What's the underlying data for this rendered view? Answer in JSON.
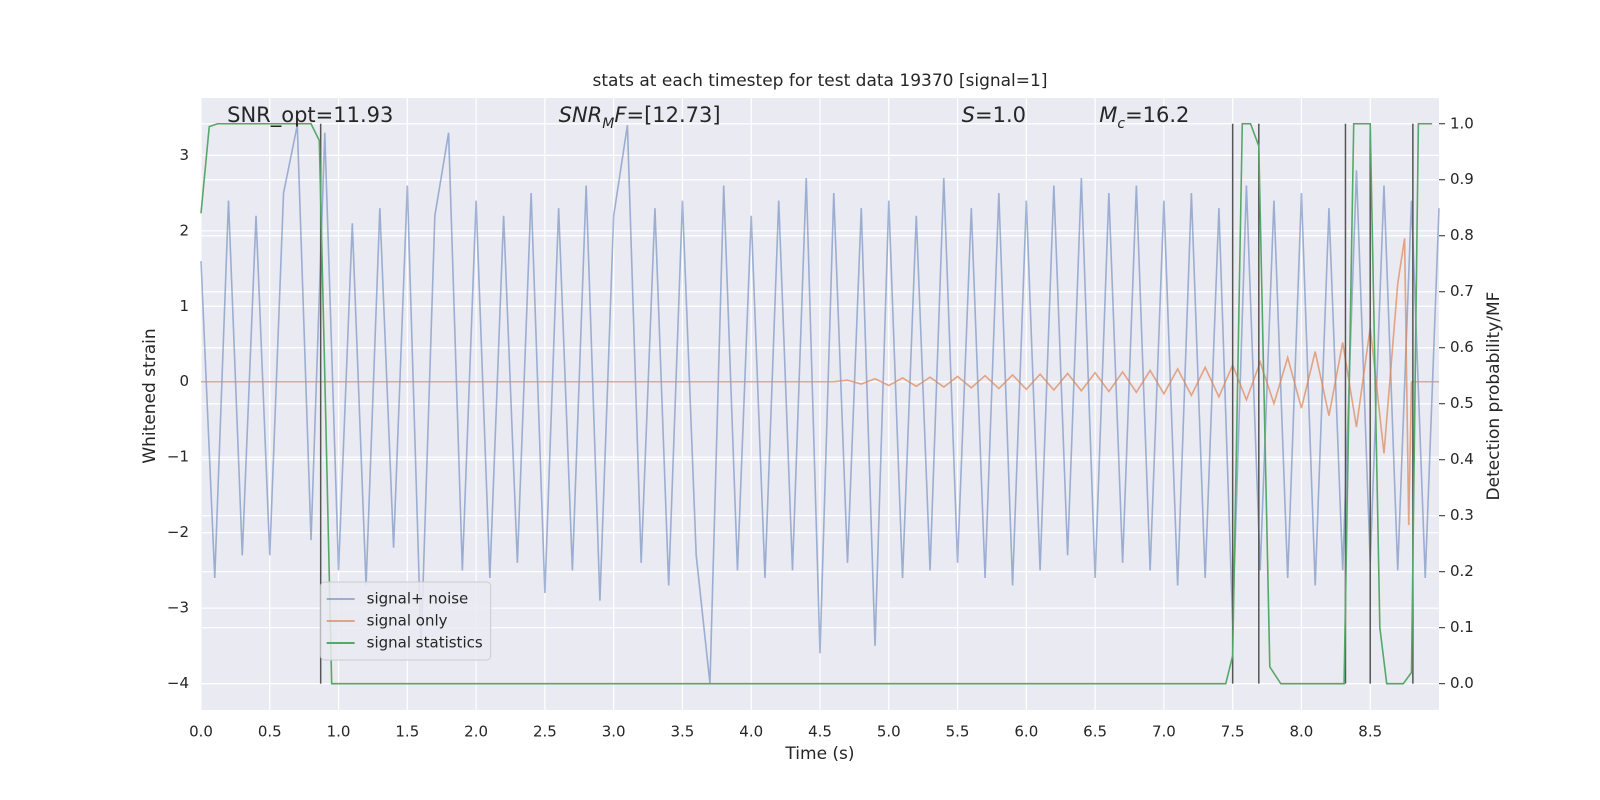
{
  "chart_data": {
    "type": "line",
    "title": "stats at each timestep for test data 19370 [signal=1]",
    "xlabel": "Time (s)",
    "ylabel": "Whitened strain",
    "y2label": "Detection probability/MF",
    "annotations": [
      [
        {
          "text": "SNR_opt=11.93"
        }
      ],
      [
        {
          "text": "SNR",
          "italic": true
        },
        {
          "text": "M",
          "italic": true,
          "sub": true
        },
        {
          "text": "F",
          "italic": true
        },
        {
          "text": "=[12.73]"
        }
      ],
      [
        {
          "text": "S",
          "italic": true
        },
        {
          "text": "=1.0"
        }
      ],
      [
        {
          "text": "M",
          "italic": true
        },
        {
          "text": "c",
          "italic": true,
          "sub": true
        },
        {
          "text": "=16.2"
        }
      ]
    ],
    "xlim": [
      0,
      9.0
    ],
    "ylim": [
      -4.35,
      3.76
    ],
    "y2lim": [
      -0.047,
      1.046
    ],
    "xticks": [
      {
        "value": 0,
        "label": "0.0"
      },
      0.5,
      {
        "value": 1,
        "label": "1.0"
      },
      1.5,
      {
        "value": 2,
        "label": "2.0"
      },
      2.5,
      {
        "value": 3,
        "label": "3.0"
      },
      3.5,
      {
        "value": 4,
        "label": "4.0"
      },
      4.5,
      {
        "value": 5,
        "label": "5.0"
      },
      5.5,
      {
        "value": 6,
        "label": "6.0"
      },
      6.5,
      {
        "value": 7,
        "label": "7.0"
      },
      7.5,
      {
        "value": 8,
        "label": "8.0"
      },
      8.5
    ],
    "yticks": [
      {
        "value": -4,
        "label": "−4"
      },
      {
        "value": -3,
        "label": "−3"
      },
      {
        "value": -2,
        "label": "−2"
      },
      {
        "value": -1,
        "label": "−1"
      },
      0,
      1,
      2,
      3
    ],
    "y2ticks": [
      {
        "value": 0,
        "label": "0.0"
      },
      0.1,
      0.2,
      0.3,
      0.4,
      0.5,
      0.6,
      0.7,
      0.8,
      0.9,
      {
        "value": 1,
        "label": "1.0"
      }
    ],
    "grid": true,
    "legend": "lower left",
    "vlines": [
      0.87,
      7.5,
      7.69,
      8.32,
      8.5,
      8.81
    ],
    "vline_color": "#555555",
    "series": [
      {
        "name": "signal+ noise",
        "color": "#4c72b0",
        "alpha": 0.5,
        "x": [
          0.0,
          0.1,
          0.2,
          0.3,
          0.4,
          0.5,
          0.6,
          0.7,
          0.8,
          0.9,
          1.0,
          1.1,
          1.2,
          1.3,
          1.4,
          1.5,
          1.6,
          1.7,
          1.8,
          1.9,
          2.0,
          2.1,
          2.2,
          2.3,
          2.4,
          2.5,
          2.6,
          2.7,
          2.8,
          2.9,
          3.0,
          3.1,
          3.2,
          3.3,
          3.4,
          3.5,
          3.6,
          3.7,
          3.8,
          3.9,
          4.0,
          4.1,
          4.2,
          4.3,
          4.4,
          4.5,
          4.6,
          4.7,
          4.8,
          4.9,
          5.0,
          5.1,
          5.2,
          5.3,
          5.4,
          5.5,
          5.6,
          5.7,
          5.8,
          5.9,
          6.0,
          6.1,
          6.2,
          6.3,
          6.4,
          6.5,
          6.6,
          6.7,
          6.8,
          6.9,
          7.0,
          7.1,
          7.2,
          7.3,
          7.4,
          7.5,
          7.6,
          7.7,
          7.8,
          7.9,
          8.0,
          8.1,
          8.2,
          8.3,
          8.4,
          8.5,
          8.6,
          8.7,
          8.8,
          8.9,
          9.0
        ],
        "values": [
          1.6,
          -2.6,
          2.4,
          -2.3,
          2.2,
          -2.3,
          2.5,
          3.4,
          -2.1,
          3.3,
          -2.5,
          2.1,
          -2.7,
          2.3,
          -2.2,
          2.6,
          -3.5,
          2.2,
          3.3,
          -2.5,
          2.4,
          -2.6,
          2.2,
          -2.4,
          2.5,
          -2.8,
          2.3,
          -2.5,
          2.6,
          -2.9,
          2.2,
          3.4,
          -2.4,
          2.3,
          -2.7,
          2.4,
          -2.3,
          -4.0,
          2.6,
          -2.5,
          2.2,
          -2.6,
          2.4,
          -2.5,
          2.7,
          -3.6,
          2.5,
          -2.4,
          2.3,
          -3.5,
          2.4,
          -2.6,
          2.2,
          -2.5,
          2.7,
          -2.4,
          2.3,
          -2.6,
          2.5,
          -2.7,
          2.4,
          -2.5,
          2.6,
          -2.3,
          2.7,
          -2.6,
          2.5,
          -2.4,
          2.6,
          -2.5,
          2.4,
          -2.7,
          2.5,
          -2.6,
          2.3,
          -3.2,
          2.6,
          -2.5,
          2.4,
          -2.6,
          2.5,
          -2.7,
          2.3,
          -2.5,
          2.8,
          -2.4,
          2.6,
          -2.5,
          2.4,
          -2.6,
          2.3
        ]
      },
      {
        "name": "signal only",
        "color": "#dd8452",
        "alpha": 0.7,
        "x": [
          0.0,
          4.6,
          4.7,
          4.8,
          4.9,
          5.0,
          5.1,
          5.2,
          5.3,
          5.4,
          5.5,
          5.6,
          5.7,
          5.8,
          5.9,
          6.0,
          6.1,
          6.2,
          6.3,
          6.4,
          6.5,
          6.6,
          6.7,
          6.8,
          6.9,
          7.0,
          7.1,
          7.2,
          7.3,
          7.4,
          7.5,
          7.6,
          7.7,
          7.8,
          7.9,
          8.0,
          8.1,
          8.2,
          8.3,
          8.4,
          8.5,
          8.6,
          8.7,
          8.75,
          8.78,
          8.8,
          9.0
        ],
        "values": [
          0,
          0,
          0.02,
          -0.03,
          0.04,
          -0.05,
          0.05,
          -0.06,
          0.06,
          -0.07,
          0.07,
          -0.08,
          0.08,
          -0.09,
          0.09,
          -0.1,
          0.1,
          -0.11,
          0.11,
          -0.12,
          0.12,
          -0.13,
          0.13,
          -0.14,
          0.15,
          -0.16,
          0.17,
          -0.18,
          0.19,
          -0.2,
          0.22,
          -0.24,
          0.26,
          -0.29,
          0.32,
          -0.35,
          0.4,
          -0.45,
          0.52,
          -0.6,
          0.72,
          -0.95,
          1.3,
          1.9,
          -1.9,
          0,
          0
        ]
      },
      {
        "name": "signal statistics",
        "color": "#55a868",
        "alpha": 1,
        "axis": "y2",
        "x": [
          0.0,
          0.06,
          0.12,
          0.2,
          0.8,
          0.86,
          0.9,
          0.95,
          7.45,
          7.5,
          7.57,
          7.63,
          7.69,
          7.77,
          7.85,
          8.31,
          8.38,
          8.43,
          8.5,
          8.57,
          8.62,
          8.74,
          8.8,
          8.85,
          8.95
        ],
        "values": [
          0.84,
          0.995,
          1.0,
          1.0,
          1.0,
          0.97,
          0.55,
          0.0,
          0.0,
          0.05,
          1.0,
          1.0,
          0.96,
          0.03,
          0.0,
          0.0,
          1.0,
          1.0,
          1.0,
          0.1,
          0.0,
          0.0,
          0.02,
          1.0,
          1.0
        ]
      }
    ]
  }
}
